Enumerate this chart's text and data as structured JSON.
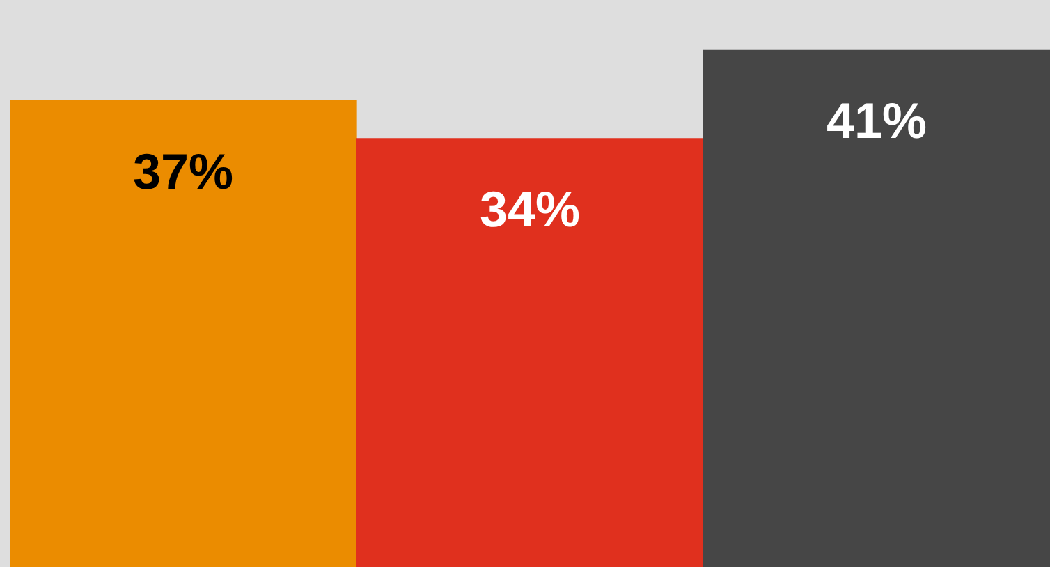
{
  "chart_data": {
    "type": "bar",
    "categories": [
      null,
      null,
      null
    ],
    "values": [
      37,
      34,
      41
    ],
    "colors": [
      "#eb8c00",
      "#e0301e",
      "#464646"
    ],
    "data_labels": true,
    "value_labels": [
      "37%",
      "34%",
      "41%"
    ],
    "legend": false
  }
}
